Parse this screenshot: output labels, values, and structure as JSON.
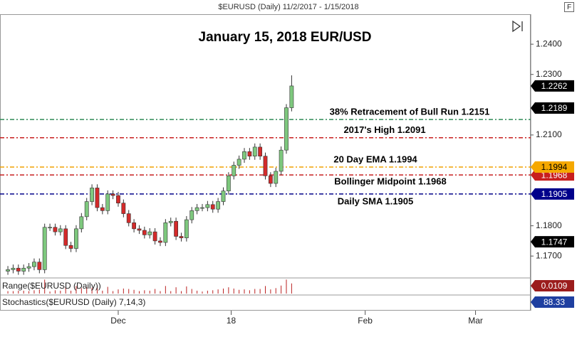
{
  "chart_data": {
    "type": "candlestick",
    "header": "$EURUSD (Daily)  11/2/2017 - 1/15/2018",
    "title": "January 15, 2018 EUR/USD",
    "up_color": "#7ec87e",
    "down_color": "#d42a2a",
    "open": [
      1.165,
      1.1655,
      1.166,
      1.165,
      1.166,
      1.1665,
      1.168,
      1.1655,
      1.1795,
      1.1795,
      1.178,
      1.179,
      1.1735,
      1.1725,
      1.179,
      1.183,
      1.188,
      1.1925,
      1.186,
      1.185,
      1.1905,
      1.19,
      1.1875,
      1.184,
      1.181,
      1.179,
      1.1785,
      1.177,
      1.178,
      1.175,
      1.1745,
      1.181,
      1.1815,
      1.1765,
      1.176,
      1.182,
      1.185,
      1.186,
      1.186,
      1.187,
      1.1855,
      1.188,
      1.1915,
      1.1965,
      1.2,
      1.202,
      1.2045,
      1.203,
      1.206,
      1.203,
      1.1965,
      1.194,
      1.198,
      1.205,
      1.219
    ],
    "high": [
      1.1667,
      1.1672,
      1.1672,
      1.1672,
      1.1677,
      1.1692,
      1.1692,
      1.1807,
      1.1807,
      1.1807,
      1.1802,
      1.1802,
      1.1747,
      1.1802,
      1.1842,
      1.1892,
      1.1937,
      1.1937,
      1.1872,
      1.1917,
      1.1917,
      1.1912,
      1.1887,
      1.1852,
      1.1822,
      1.1802,
      1.1797,
      1.1792,
      1.1792,
      1.1762,
      1.1822,
      1.1827,
      1.1827,
      1.1777,
      1.1832,
      1.1862,
      1.1872,
      1.1872,
      1.1882,
      1.1882,
      1.1892,
      1.1927,
      1.1977,
      1.2012,
      1.2032,
      1.2057,
      1.2057,
      1.2072,
      1.2072,
      1.2042,
      1.1977,
      1.1992,
      1.2062,
      1.2202,
      1.2297
    ],
    "low": [
      1.1638,
      1.1643,
      1.1638,
      1.1638,
      1.1648,
      1.1653,
      1.1643,
      1.1643,
      1.1783,
      1.1768,
      1.1768,
      1.1723,
      1.1713,
      1.1713,
      1.1778,
      1.1818,
      1.1868,
      1.1848,
      1.1838,
      1.1838,
      1.1888,
      1.1863,
      1.1828,
      1.1798,
      1.1778,
      1.1773,
      1.1758,
      1.1758,
      1.1738,
      1.1733,
      1.1733,
      1.1798,
      1.1753,
      1.1748,
      1.1748,
      1.1808,
      1.1838,
      1.1848,
      1.1848,
      1.1843,
      1.1843,
      1.1868,
      1.1903,
      1.1953,
      1.1988,
      1.2008,
      1.2018,
      1.2018,
      1.2018,
      1.1953,
      1.1928,
      1.1928,
      1.1968,
      1.2038,
      1.2178
    ],
    "close": [
      1.1655,
      1.166,
      1.165,
      1.166,
      1.1665,
      1.168,
      1.1655,
      1.1795,
      1.1795,
      1.178,
      1.179,
      1.1735,
      1.1725,
      1.179,
      1.183,
      1.188,
      1.1925,
      1.186,
      1.185,
      1.1905,
      1.19,
      1.1875,
      1.184,
      1.181,
      1.179,
      1.1785,
      1.177,
      1.178,
      1.175,
      1.1745,
      1.181,
      1.1815,
      1.1765,
      1.176,
      1.182,
      1.185,
      1.186,
      1.186,
      1.187,
      1.1855,
      1.188,
      1.1915,
      1.1965,
      1.2,
      1.202,
      1.2045,
      1.203,
      1.206,
      1.203,
      1.1965,
      1.194,
      1.198,
      1.205,
      1.219,
      1.2262
    ],
    "xlim": [
      -1.5,
      99.5
    ],
    "xticks": [
      {
        "value": 21,
        "label": "Dec"
      },
      {
        "value": 42.5,
        "label": "18"
      },
      {
        "value": 68,
        "label": "Feb"
      },
      {
        "value": 89,
        "label": "Mar"
      }
    ],
    "ylim": [
      1.163,
      1.2499
    ],
    "yticks": [
      {
        "value": 1.24,
        "label": "1.2400"
      },
      {
        "value": 1.23,
        "label": "1.2300"
      },
      {
        "value": 1.21,
        "label": "1.2100"
      },
      {
        "value": 1.18,
        "label": "1.1800"
      },
      {
        "value": 1.17,
        "label": "1.1700"
      }
    ],
    "levels": [
      {
        "label": "38% Retracement of Bull Run 1.2151",
        "value": 1.2151,
        "color": "#2e8b57"
      },
      {
        "label": "2017's High 1.2091",
        "value": 1.2091,
        "color": "#c81e1e"
      },
      {
        "label": "20 Day EMA 1.1994",
        "value": 1.1994,
        "color": "#f0a000"
      },
      {
        "label": "Bollinger Midpoint 1.1968",
        "value": 1.1968,
        "color": "#c81e1e"
      },
      {
        "label": "Daily SMA 1.1905",
        "value": 1.1905,
        "color": "#00008b"
      }
    ],
    "price_flags": [
      {
        "value": 1.2262,
        "color": "#000000"
      },
      {
        "value": 1.2189,
        "color": "#000000"
      },
      {
        "value": 1.1968,
        "color": "#c81e1e"
      },
      {
        "value": 1.1994,
        "color": "#f5a800"
      },
      {
        "value": 1.1905,
        "color": "#00008b"
      },
      {
        "value": 1.1747,
        "color": "#000000"
      }
    ],
    "panels": [
      {
        "label": "Range($EURUSD (Daily))",
        "value": 0.0109,
        "color": "#9b1c1c"
      },
      {
        "label": "Stochastics($EURUSD (Daily) 7,14,3)",
        "value": 88.33,
        "color": "#1f3fa0"
      }
    ]
  }
}
